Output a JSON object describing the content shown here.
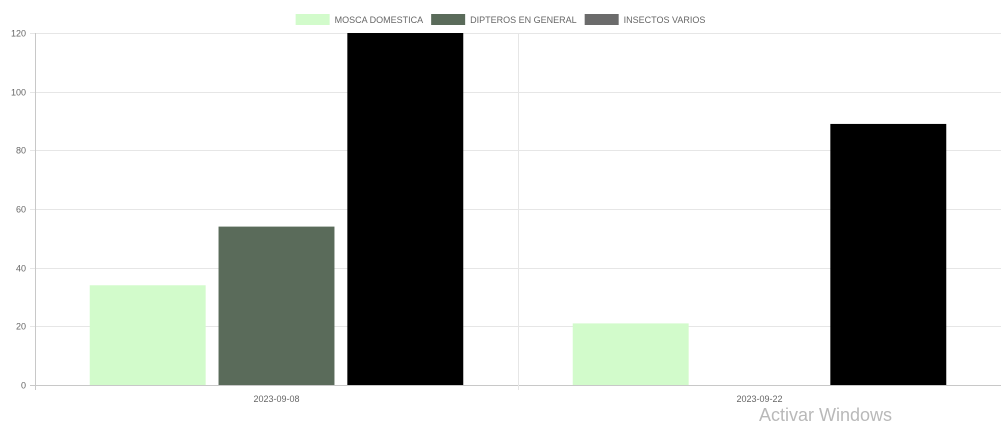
{
  "watermark": "Activar Windows",
  "chart_data": {
    "type": "bar",
    "title": "",
    "xlabel": "",
    "ylabel": "",
    "categories": [
      "2023-09-08",
      "2023-09-22"
    ],
    "ylim": [
      0,
      120
    ],
    "yticks": [
      0,
      20,
      40,
      60,
      80,
      100,
      120
    ],
    "grid": true,
    "legend_position": "top",
    "series": [
      {
        "name": "MOSCA DOMESTICA",
        "color": "#d2fbcb",
        "values": [
          34,
          21
        ]
      },
      {
        "name": "DIPTEROS EN GENERAL",
        "color": "#5a6b5a",
        "values": [
          54,
          0
        ]
      },
      {
        "name": "INSECTOS VARIOS",
        "color": "#000000",
        "values": [
          120,
          89
        ],
        "legend_color": "#6b6b6b"
      }
    ]
  }
}
